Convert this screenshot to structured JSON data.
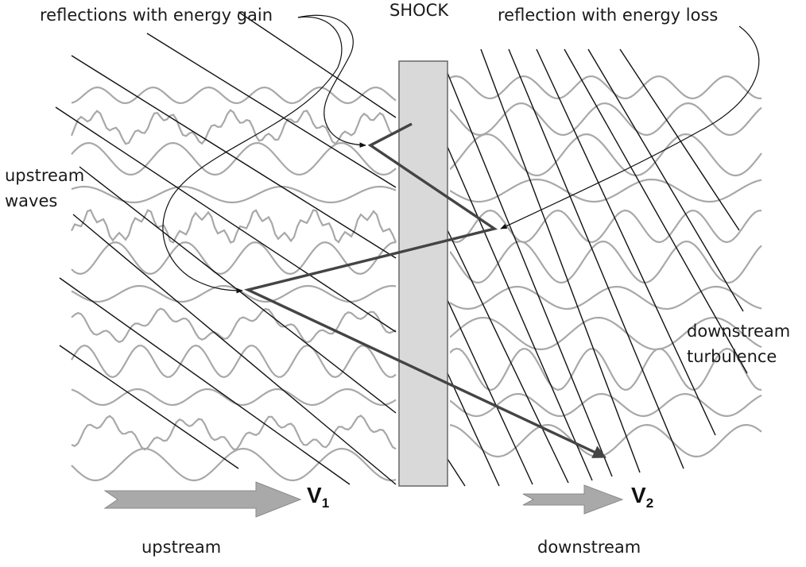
{
  "labels": {
    "shock": "SHOCK",
    "energy_gain": "reflections with energy gain",
    "energy_loss": "reflection with energy loss",
    "upstream_waves_1": "upstream",
    "upstream_waves_2": "waves",
    "downstream_turbulence_1": "downstream",
    "downstream_turbulence_2": "turbulence",
    "upstream": "upstream",
    "downstream": "downstream",
    "v1_letter": "V",
    "v1_sub": "1",
    "v2_letter": "V",
    "v2_sub": "2"
  },
  "colors": {
    "shock_fill": "#d9d9d9",
    "shock_stroke": "#6f6f6f",
    "field_line": "#111111",
    "wave": "#a8a8a8",
    "path": "#444444",
    "arrow_fill": "#a9a9a9",
    "arrow_stroke": "#8a8a8a"
  }
}
